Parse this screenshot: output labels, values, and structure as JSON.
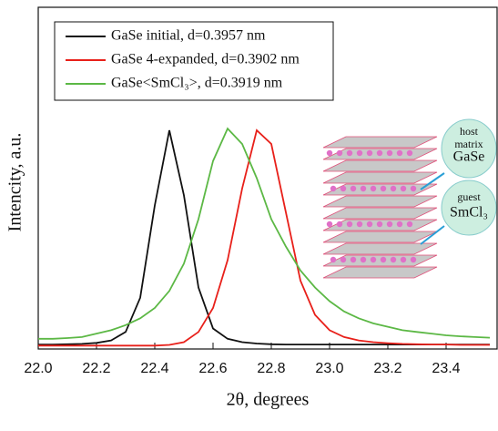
{
  "chart_data": {
    "type": "line",
    "x_label": "2θ, degrees",
    "y_label": "Intencity, a.u.",
    "x": [
      22.0,
      22.05,
      22.1,
      22.15,
      22.2,
      22.25,
      22.3,
      22.35,
      22.4,
      22.45,
      22.5,
      22.55,
      22.6,
      22.65,
      22.7,
      22.75,
      22.8,
      22.85,
      22.9,
      22.95,
      23.0,
      23.05,
      23.1,
      23.15,
      23.2,
      23.25,
      23.3,
      23.35,
      23.4,
      23.45,
      23.5,
      23.55
    ],
    "series": [
      {
        "name": "GaSe initial, d=0.3957 nm",
        "color": "#111111",
        "values": [
          0.013,
          0.013,
          0.014,
          0.015,
          0.018,
          0.025,
          0.05,
          0.15,
          0.42,
          0.64,
          0.45,
          0.18,
          0.06,
          0.03,
          0.02,
          0.016,
          0.014,
          0.013,
          0.013,
          0.013,
          0.013,
          0.013,
          0.013,
          0.013,
          0.013,
          0.013,
          0.013,
          0.013,
          0.013,
          0.013,
          0.013,
          0.013
        ]
      },
      {
        "name": "GaSe 4-expanded, d=0.3902 nm",
        "color": "#e8201a",
        "values": [
          0.01,
          0.01,
          0.01,
          0.01,
          0.01,
          0.01,
          0.01,
          0.01,
          0.01,
          0.012,
          0.02,
          0.05,
          0.12,
          0.26,
          0.47,
          0.64,
          0.6,
          0.4,
          0.2,
          0.1,
          0.055,
          0.035,
          0.025,
          0.02,
          0.017,
          0.015,
          0.014,
          0.013,
          0.013,
          0.012,
          0.012,
          0.012
        ]
      },
      {
        "name": "GaSe<SmCl₃>, d=0.3919 nm",
        "color": "#5cb845",
        "values": [
          0.03,
          0.03,
          0.032,
          0.035,
          0.045,
          0.055,
          0.07,
          0.09,
          0.12,
          0.17,
          0.25,
          0.38,
          0.55,
          0.645,
          0.6,
          0.5,
          0.38,
          0.3,
          0.23,
          0.18,
          0.14,
          0.11,
          0.09,
          0.075,
          0.065,
          0.055,
          0.05,
          0.045,
          0.04,
          0.037,
          0.035,
          0.033
        ]
      }
    ],
    "xlim": [
      22.0,
      23.575
    ],
    "xticks": [
      {
        "value": 22.0,
        "label": "22.0"
      },
      22.2,
      22.4,
      22.6,
      22.8,
      {
        "value": 23.0,
        "label": "23.0"
      },
      23.2,
      23.4
    ],
    "ylim": [
      0,
      1
    ],
    "legend": "top-left",
    "annotations": {
      "host": [
        "host",
        "matrix",
        "GaSe"
      ],
      "guest": [
        "guest",
        "SmCl₃"
      ]
    }
  }
}
